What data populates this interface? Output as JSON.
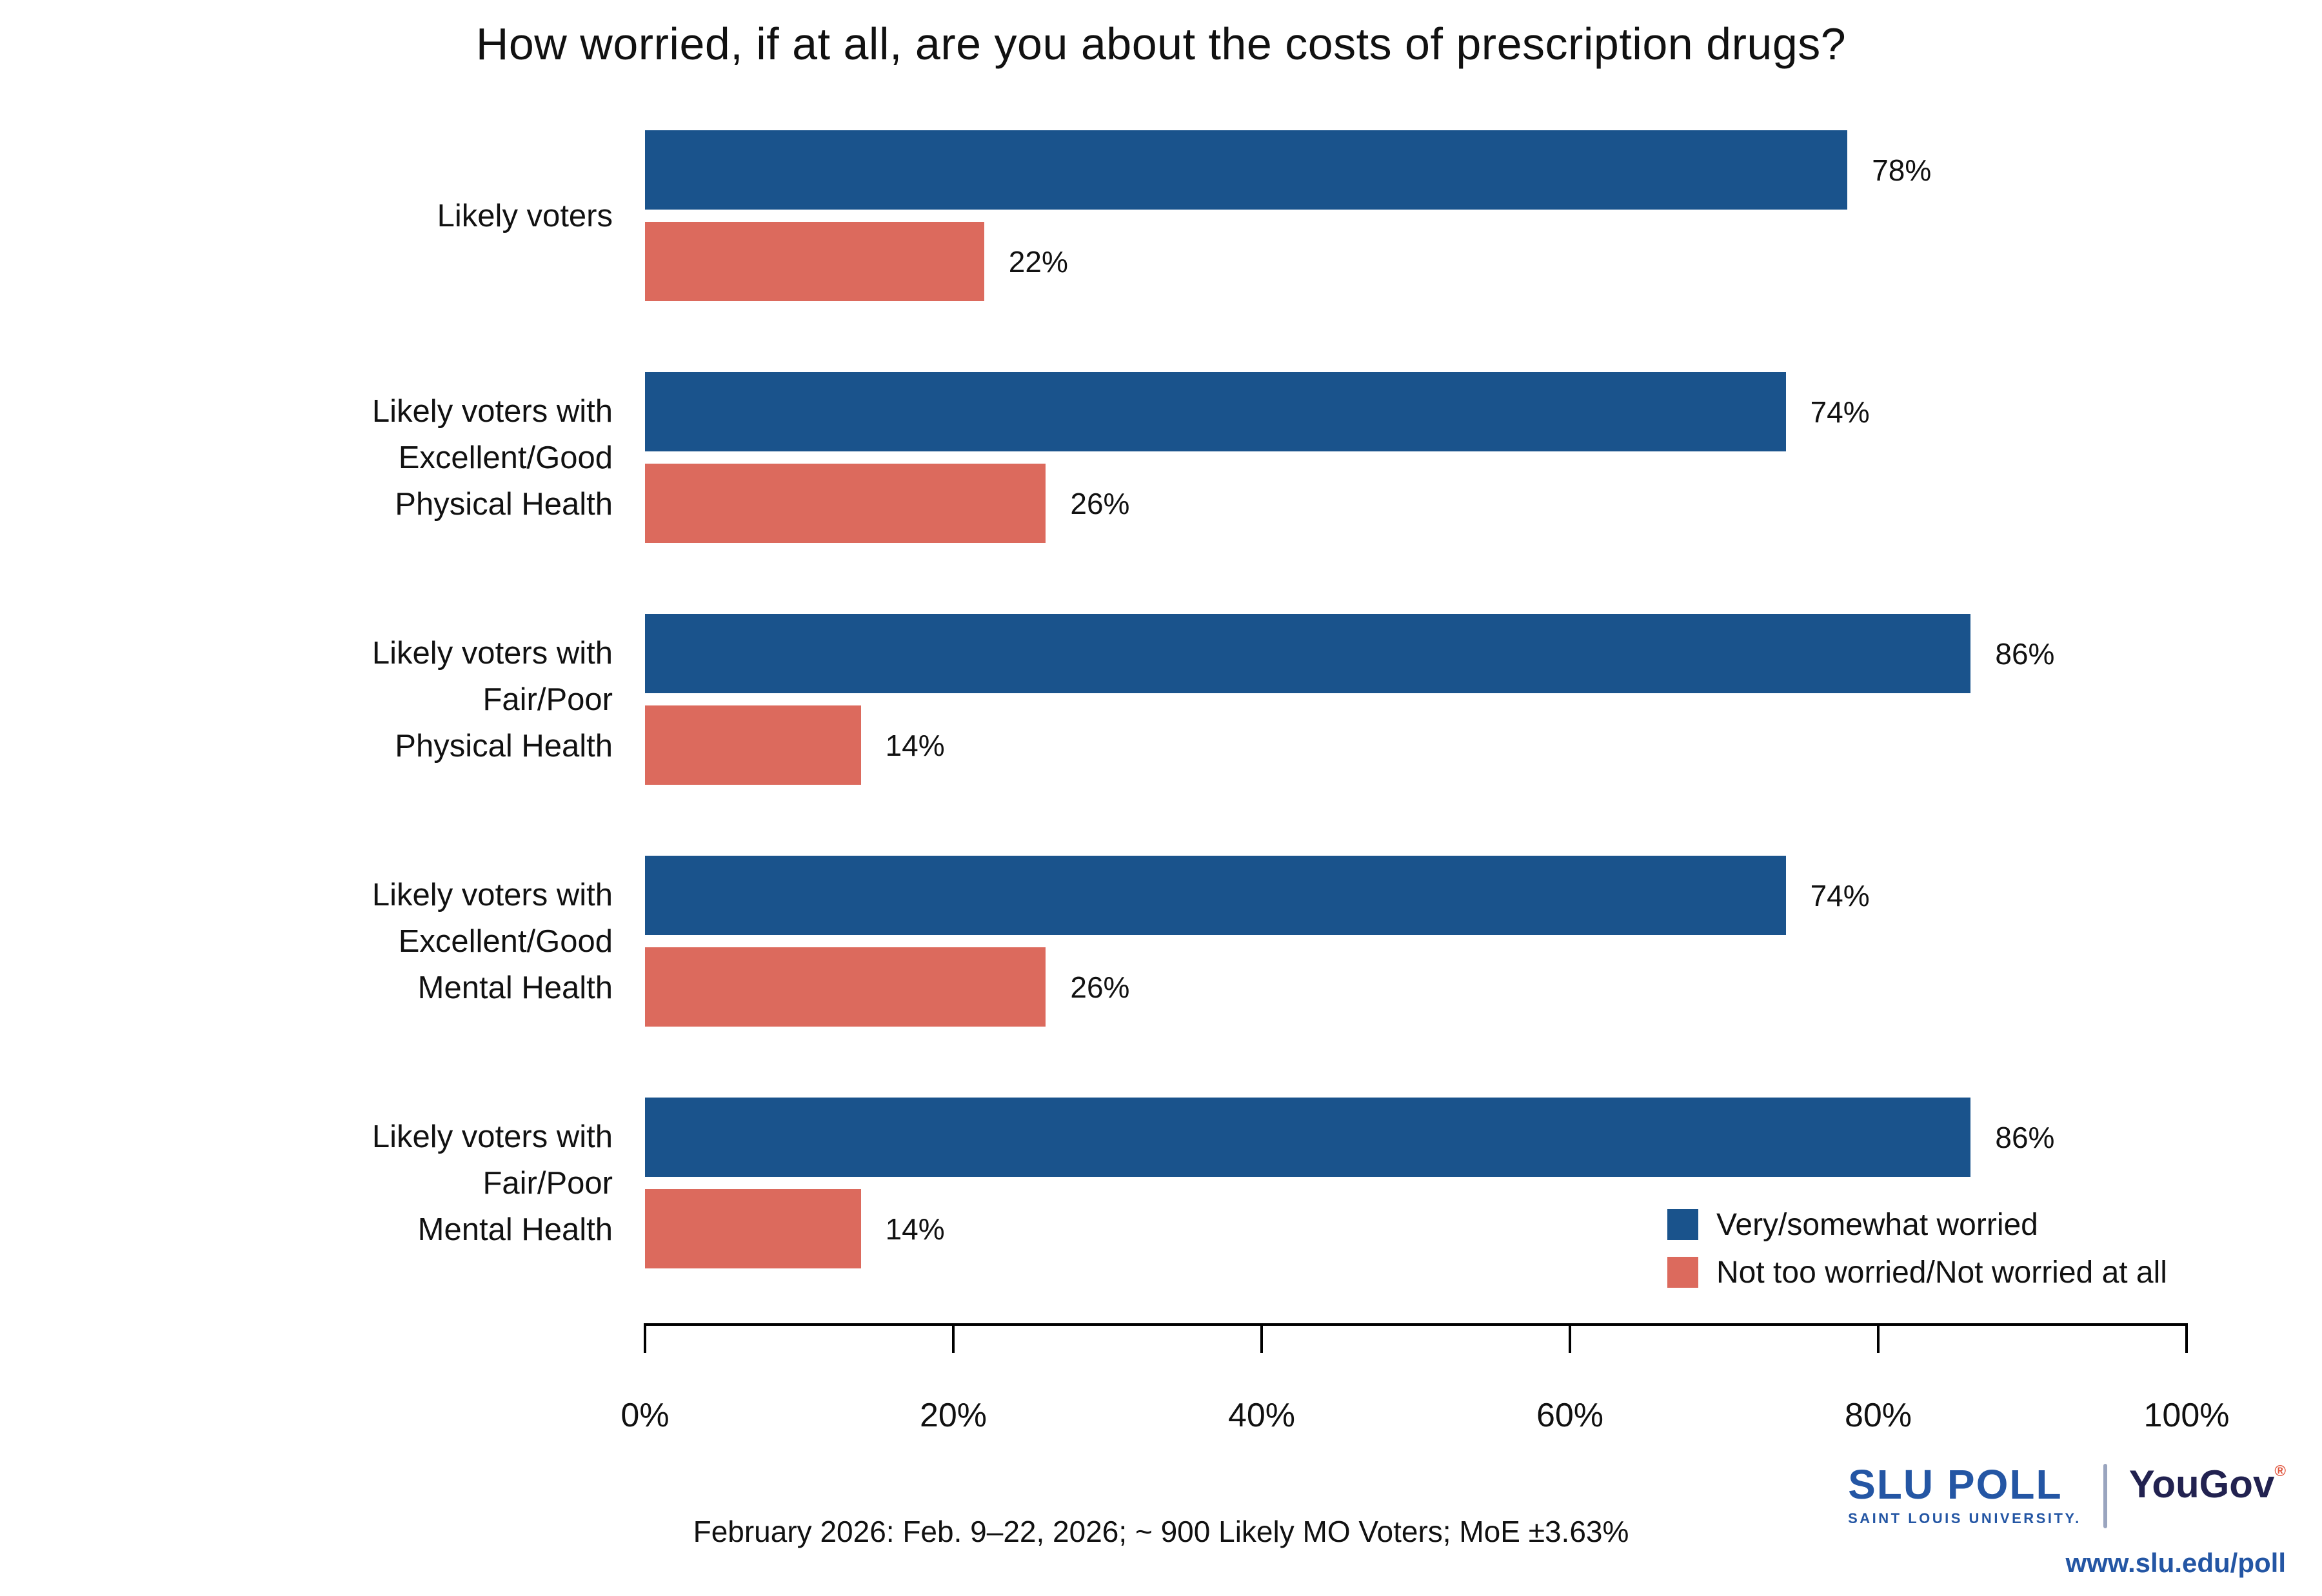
{
  "title": "How worried, if at all, are you about the costs of prescription drugs?",
  "chart_data": {
    "type": "bar",
    "orientation": "horizontal",
    "title": "How worried, if at all, are you about the costs of prescription drugs?",
    "categories": [
      "Likely voters",
      "Likely voters with Excellent/Good Physical Health",
      "Likely voters with Fair/Poor Physical Health",
      "Likely voters with Excellent/Good Mental Health",
      "Likely voters with Fair/Poor Mental Health"
    ],
    "category_lines": [
      [
        "Likely voters"
      ],
      [
        "Likely voters with",
        "Excellent/Good",
        "Physical Health"
      ],
      [
        "Likely voters with",
        "Fair/Poor",
        "Physical Health"
      ],
      [
        "Likely voters with",
        "Excellent/Good",
        "Mental Health"
      ],
      [
        "Likely voters with",
        "Fair/Poor",
        "Mental Health"
      ]
    ],
    "series": [
      {
        "name": "Very/somewhat worried",
        "color": "#1a538c",
        "values": [
          78,
          74,
          86,
          74,
          86
        ]
      },
      {
        "name": "Not too worried/Not worried at all",
        "color": "#dc6a5d",
        "values": [
          22,
          26,
          14,
          26,
          14
        ]
      }
    ],
    "value_suffix": "%",
    "xlim": [
      0,
      100
    ],
    "x_ticks": [
      "0%",
      "20%",
      "40%",
      "60%",
      "80%",
      "100%"
    ],
    "legend_position": "bottom-right",
    "grid": false
  },
  "footer": {
    "note": "February 2026: Feb. 9–22, 2026; ~ 900 Likely MO Voters; MoE ±3.63%"
  },
  "branding": {
    "slu_title": "SLU POLL",
    "slu_subtitle": "SAINT LOUIS UNIVERSITY.",
    "yougov": "YouGov",
    "yougov_mark": "®",
    "url": "www.slu.edu/poll",
    "slu_blue": "#2456a4",
    "yougov_color": "#222250",
    "mark_color": "#e0543c",
    "divider_color": "#9aa5bf"
  }
}
